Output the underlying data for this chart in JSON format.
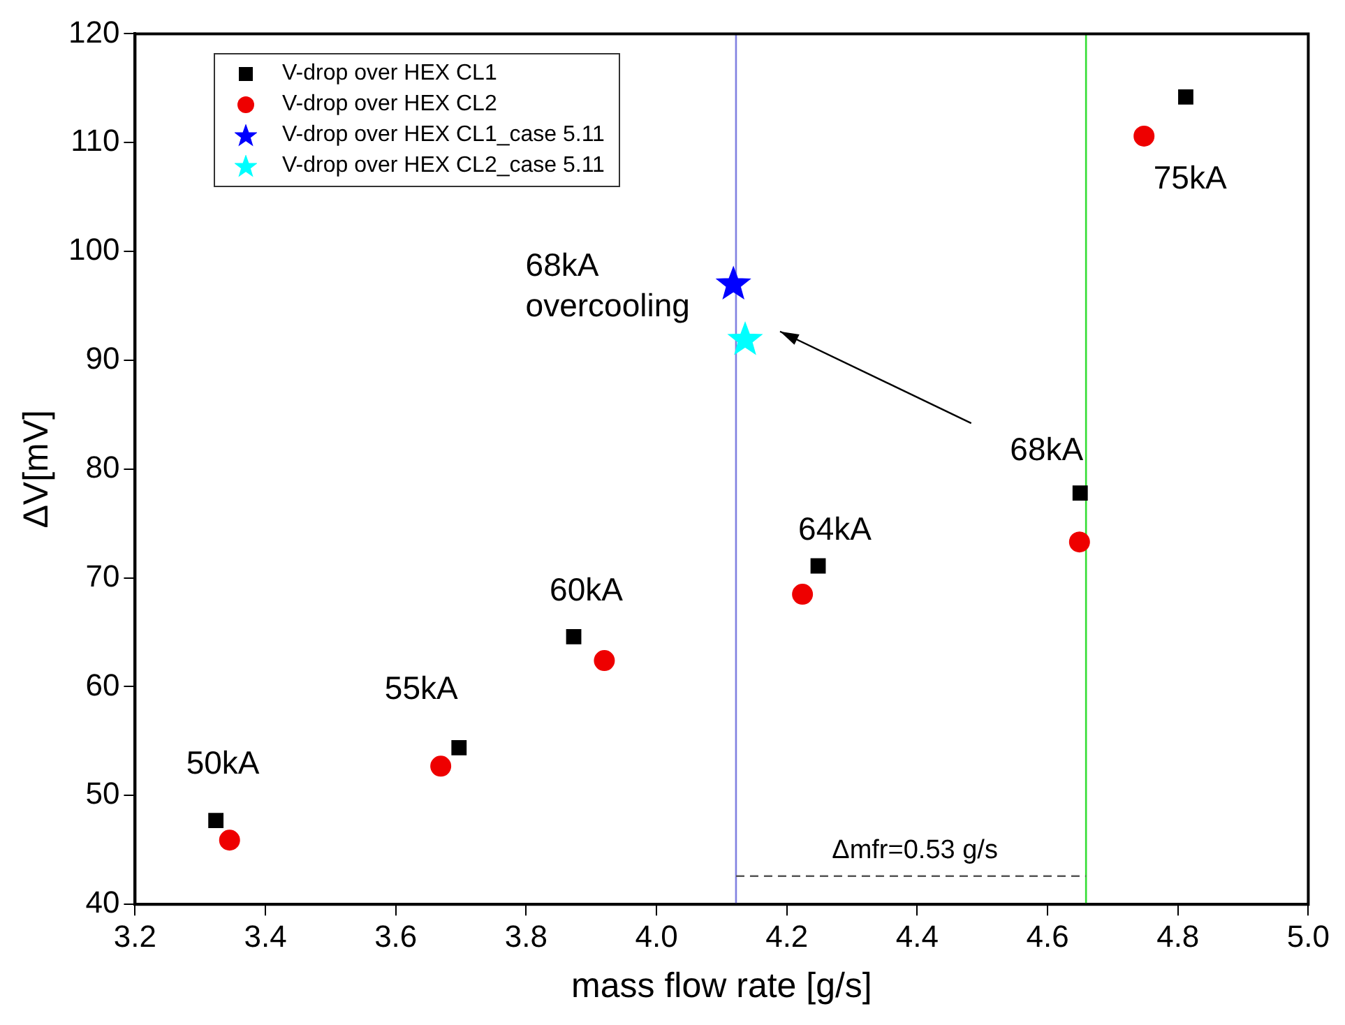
{
  "chart_data": {
    "type": "scatter",
    "xlabel": "mass flow rate [g/s]",
    "ylabel": "ΔV[mV]",
    "xlim": [
      3.2,
      5.0
    ],
    "xticks": [
      3.2,
      3.4,
      3.6,
      3.8,
      {
        "value": 4.0,
        "label": "4.0"
      },
      4.2,
      4.4,
      4.6,
      4.8,
      {
        "value": 5.0,
        "label": "5.0"
      }
    ],
    "ylim": [
      40,
      120
    ],
    "yticks": [
      40,
      50,
      60,
      70,
      80,
      90,
      100,
      110,
      120
    ],
    "grid": false,
    "legend": "top left",
    "series": [
      {
        "name": "V-drop over HEX CL1",
        "color": "#000000",
        "marker": "square",
        "x": [
          3.324,
          3.697,
          3.873,
          4.248,
          4.65,
          4.812
        ],
        "values": [
          47.7,
          54.4,
          64.6,
          71.1,
          77.8,
          114.2
        ]
      },
      {
        "name": "V-drop over HEX CL2",
        "color": "#ee0000",
        "marker": "circle",
        "x": [
          3.345,
          3.669,
          3.92,
          4.224,
          4.649,
          4.748
        ],
        "values": [
          45.9,
          52.7,
          62.4,
          68.5,
          73.3,
          110.6
        ]
      },
      {
        "name": "V-drop over HEX CL1_case 5.11",
        "color": "#0000ff",
        "marker": "star",
        "x": [
          4.118
        ],
        "values": [
          97.1
        ]
      },
      {
        "name": "V-drop over HEX CL2_case 5.11",
        "color": "#00ffff",
        "marker": "star",
        "x": [
          4.136
        ],
        "values": [
          92.0
        ]
      },
      {
        "type": "line",
        "color": "#555555",
        "marker": "none",
        "line_style": "dashed",
        "x": [
          4.122,
          4.659
        ],
        "values": [
          42.6,
          42.6
        ]
      }
    ],
    "ref_lines": [
      {
        "axis": "x",
        "value": 4.122,
        "color": "#8080e0"
      },
      {
        "axis": "x",
        "value": 4.659,
        "color": "#33dd33"
      }
    ],
    "annotations": [
      {
        "text": "50kA",
        "x": 3.324,
        "y": 47.7
      },
      {
        "text": "55kA",
        "x": 3.697,
        "y": 54.4
      },
      {
        "text": "60kA",
        "x": 3.873,
        "y": 64.6
      },
      {
        "text": "64kA",
        "x": 4.248,
        "y": 71.1
      },
      {
        "text": "75kA",
        "x": 4.748,
        "y": 110.6
      },
      {
        "text": "68kA\novercooling",
        "x": 4.118,
        "y": 97.1
      },
      {
        "text": "Δmfr=0.53 g/s",
        "x": 4.39,
        "y": 42.6
      },
      {
        "text": "68kA",
        "x": 4.65,
        "y": 77.8
      }
    ]
  }
}
